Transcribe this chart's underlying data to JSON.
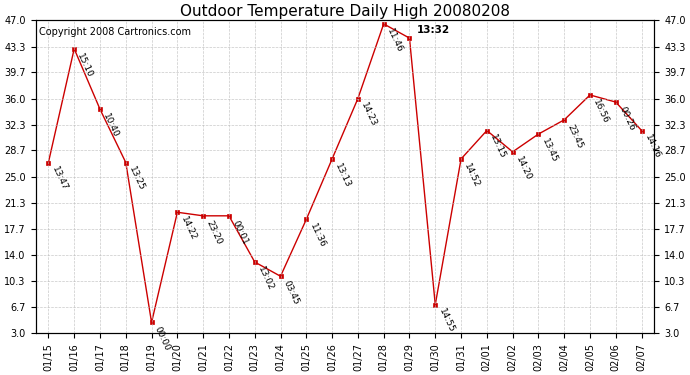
{
  "title": "Outdoor Temperature Daily High 20080208",
  "copyright": "Copyright 2008 Cartronics.com",
  "dates": [
    "01/15",
    "01/16",
    "01/17",
    "01/18",
    "01/19",
    "01/20",
    "01/21",
    "01/22",
    "01/23",
    "01/24",
    "01/25",
    "01/26",
    "01/27",
    "01/28",
    "01/29",
    "01/30",
    "01/31",
    "02/01",
    "02/02",
    "02/03",
    "02/04",
    "02/05",
    "02/06",
    "02/07"
  ],
  "values": [
    27.0,
    43.0,
    34.5,
    27.0,
    4.5,
    20.0,
    19.5,
    19.5,
    13.0,
    11.0,
    19.0,
    27.5,
    36.0,
    46.5,
    44.5,
    7.0,
    27.5,
    31.5,
    28.5,
    31.0,
    33.0,
    36.5,
    35.5,
    31.5
  ],
  "point_labels": [
    "13:47",
    "15:10",
    "10:40",
    "13:25",
    "00:00",
    "14:22",
    "23:20",
    "00:01",
    "13:02",
    "03:45",
    "11:36",
    "13:13",
    "14:23",
    "11:46",
    "13:32",
    "14:55",
    "14:52",
    "13:15",
    "14:20",
    "13:45",
    "23:45",
    "16:56",
    "00:26",
    "14:16"
  ],
  "label_horizontal": [
    false,
    false,
    false,
    false,
    false,
    false,
    false,
    false,
    false,
    false,
    false,
    false,
    false,
    false,
    true,
    false,
    false,
    false,
    false,
    false,
    false,
    false,
    false,
    false
  ],
  "label_rotations": [
    -65,
    -65,
    -65,
    -65,
    -65,
    -65,
    -65,
    -65,
    -65,
    -65,
    -65,
    -65,
    -65,
    -65,
    0,
    -65,
    -65,
    -65,
    -65,
    -65,
    -65,
    -65,
    -65,
    -65
  ],
  "yticks": [
    3.0,
    6.7,
    10.3,
    14.0,
    17.7,
    21.3,
    25.0,
    28.7,
    32.3,
    36.0,
    39.7,
    43.3,
    47.0
  ],
  "ylim": [
    3.0,
    47.0
  ],
  "line_color": "#cc0000",
  "marker_color": "#cc0000",
  "bg_color": "#ffffff",
  "grid_color": "#bbbbbb",
  "title_fontsize": 11,
  "label_fontsize": 6.5,
  "copyright_fontsize": 7,
  "xtick_fontsize": 7,
  "ytick_fontsize": 7
}
